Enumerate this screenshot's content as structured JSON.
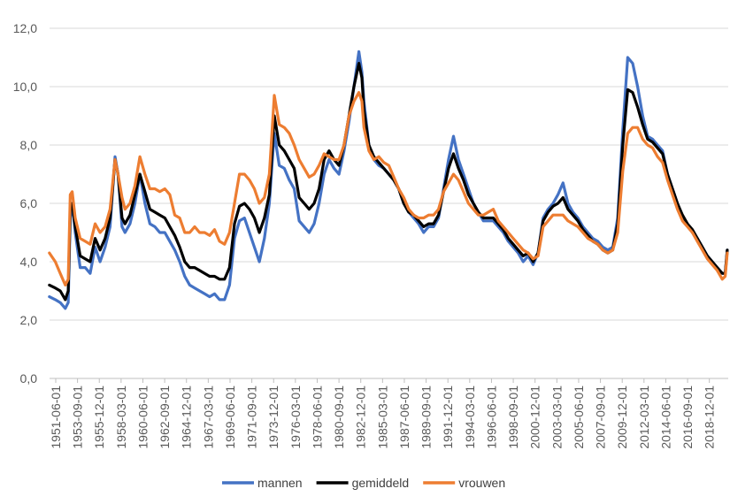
{
  "chart_data": {
    "type": "line",
    "title": "",
    "xlabel": "",
    "ylabel": "",
    "ylim": [
      0,
      12
    ],
    "yticks": [
      "0,0",
      "2,0",
      "4,0",
      "6,0",
      "8,0",
      "10,0",
      "12,0"
    ],
    "xlim": [
      1951.42,
      2019.6
    ],
    "xticks": [
      "1951-06-01",
      "1953-09-01",
      "1955-12-01",
      "1958-03-01",
      "1960-06-01",
      "1962-09-01",
      "1964-12-01",
      "1967-03-01",
      "1969-06-01",
      "1971-09-01",
      "1973-12-01",
      "1976-03-01",
      "1978-06-01",
      "1980-09-01",
      "1982-12-01",
      "1985-03-01",
      "1987-06-01",
      "1989-09-01",
      "1991-12-01",
      "1994-03-01",
      "1996-06-01",
      "1998-09-01",
      "2000-12-01",
      "2003-03-01",
      "2005-06-01",
      "2007-09-01",
      "2009-12-01",
      "2012-03-01",
      "2014-06-01",
      "2016-09-01",
      "2018-12-01"
    ],
    "grid": "horizontal",
    "legend_position": "bottom",
    "x": [
      1951.4,
      1952.0,
      1952.5,
      1953.0,
      1953.3,
      1953.5,
      1953.7,
      1954.0,
      1954.5,
      1955.0,
      1955.5,
      1956.0,
      1956.5,
      1957.0,
      1957.5,
      1958.0,
      1958.3,
      1958.7,
      1959.0,
      1959.5,
      1960.0,
      1960.5,
      1961.0,
      1961.5,
      1962.0,
      1962.5,
      1963.0,
      1963.5,
      1964.0,
      1964.5,
      1965.0,
      1965.5,
      1966.0,
      1966.5,
      1967.0,
      1967.5,
      1968.0,
      1968.5,
      1969.0,
      1969.5,
      1970.0,
      1970.5,
      1971.0,
      1971.5,
      1972.0,
      1972.5,
      1973.0,
      1973.5,
      1974.0,
      1974.5,
      1975.0,
      1975.5,
      1976.0,
      1976.5,
      1977.0,
      1977.5,
      1978.0,
      1978.5,
      1979.0,
      1979.5,
      1980.0,
      1980.5,
      1981.0,
      1981.5,
      1982.0,
      1982.5,
      1982.8,
      1983.0,
      1983.5,
      1984.0,
      1984.5,
      1985.0,
      1985.5,
      1986.0,
      1986.5,
      1987.0,
      1987.5,
      1988.0,
      1988.5,
      1989.0,
      1989.5,
      1990.0,
      1990.5,
      1991.0,
      1991.5,
      1992.0,
      1992.5,
      1993.0,
      1993.5,
      1994.0,
      1994.5,
      1995.0,
      1995.5,
      1996.0,
      1996.5,
      1997.0,
      1997.5,
      1998.0,
      1998.5,
      1999.0,
      1999.5,
      2000.0,
      2000.5,
      2001.0,
      2001.5,
      2002.0,
      2002.5,
      2003.0,
      2003.5,
      2004.0,
      2004.5,
      2005.0,
      2005.5,
      2006.0,
      2006.5,
      2007.0,
      2007.5,
      2008.0,
      2008.5,
      2009.0,
      2009.5,
      2010.0,
      2010.5,
      2011.0,
      2011.5,
      2012.0,
      2012.5,
      2013.0,
      2013.5,
      2014.0,
      2014.5,
      2015.0,
      2015.5,
      2016.0,
      2016.5,
      2017.0,
      2017.5,
      2018.0,
      2018.5,
      2019.0,
      2019.3,
      2019.5
    ],
    "series": [
      {
        "name": "mannen",
        "color": "#4472C4",
        "values": [
          2.8,
          2.7,
          2.6,
          2.4,
          2.6,
          5.5,
          6.0,
          5.0,
          3.8,
          3.8,
          3.6,
          4.5,
          4.0,
          4.5,
          5.2,
          7.6,
          7.0,
          5.2,
          5.0,
          5.3,
          6.0,
          7.0,
          6.0,
          5.3,
          5.2,
          5.0,
          5.0,
          4.7,
          4.4,
          4.0,
          3.5,
          3.2,
          3.1,
          3.0,
          2.9,
          2.8,
          2.9,
          2.7,
          2.7,
          3.2,
          4.8,
          5.4,
          5.5,
          5.0,
          4.5,
          4.0,
          4.8,
          6.0,
          8.4,
          7.3,
          7.2,
          6.8,
          6.5,
          5.4,
          5.2,
          5.0,
          5.3,
          6.0,
          7.0,
          7.5,
          7.2,
          7.0,
          7.8,
          8.8,
          10.0,
          11.2,
          10.5,
          9.5,
          8.0,
          7.5,
          7.3,
          7.2,
          7.0,
          6.8,
          6.5,
          6.0,
          5.7,
          5.5,
          5.3,
          5.0,
          5.2,
          5.2,
          5.5,
          6.5,
          7.5,
          8.3,
          7.5,
          7.0,
          6.5,
          6.0,
          5.7,
          5.4,
          5.4,
          5.4,
          5.2,
          5.0,
          4.7,
          4.5,
          4.3,
          4.0,
          4.2,
          3.9,
          4.3,
          5.5,
          5.8,
          6.0,
          6.3,
          6.7,
          6.0,
          5.7,
          5.5,
          5.2,
          5.0,
          4.8,
          4.7,
          4.5,
          4.4,
          4.5,
          5.5,
          8.5,
          11.0,
          10.8,
          10.0,
          9.0,
          8.3,
          8.2,
          8.0,
          7.8,
          7.0,
          6.5,
          6.0,
          5.5,
          5.3,
          5.0,
          4.8,
          4.5,
          4.2,
          4.0,
          3.8,
          3.6,
          3.6,
          4.4
        ]
      },
      {
        "name": "gemiddeld",
        "color": "#000000",
        "values": [
          3.2,
          3.1,
          3.0,
          2.7,
          3.0,
          5.8,
          6.0,
          5.2,
          4.2,
          4.1,
          4.0,
          4.8,
          4.4,
          4.8,
          5.5,
          7.5,
          7.0,
          5.5,
          5.3,
          5.6,
          6.3,
          7.0,
          6.4,
          5.8,
          5.7,
          5.6,
          5.5,
          5.2,
          4.9,
          4.5,
          4.0,
          3.8,
          3.8,
          3.7,
          3.6,
          3.5,
          3.5,
          3.4,
          3.4,
          3.8,
          5.3,
          5.9,
          6.0,
          5.8,
          5.5,
          5.0,
          5.5,
          6.3,
          9.0,
          8.0,
          7.8,
          7.5,
          7.2,
          6.2,
          6.0,
          5.8,
          6.0,
          6.5,
          7.5,
          7.8,
          7.5,
          7.3,
          8.0,
          9.0,
          10.0,
          10.8,
          10.3,
          9.2,
          8.0,
          7.6,
          7.4,
          7.2,
          7.0,
          6.8,
          6.5,
          6.0,
          5.7,
          5.6,
          5.4,
          5.2,
          5.3,
          5.3,
          5.6,
          6.4,
          7.2,
          7.7,
          7.2,
          6.8,
          6.3,
          6.0,
          5.7,
          5.5,
          5.5,
          5.5,
          5.3,
          5.1,
          4.8,
          4.6,
          4.4,
          4.2,
          4.3,
          4.0,
          4.3,
          5.4,
          5.7,
          5.9,
          6.0,
          6.2,
          5.8,
          5.6,
          5.4,
          5.1,
          4.9,
          4.7,
          4.6,
          4.4,
          4.3,
          4.4,
          5.3,
          8.0,
          9.9,
          9.8,
          9.3,
          8.7,
          8.2,
          8.1,
          7.9,
          7.7,
          7.0,
          6.5,
          6.0,
          5.6,
          5.3,
          5.1,
          4.8,
          4.5,
          4.2,
          4.0,
          3.8,
          3.6,
          3.6,
          4.4
        ]
      },
      {
        "name": "vrouwen",
        "color": "#ED7D31",
        "values": [
          4.3,
          4.0,
          3.6,
          3.2,
          3.4,
          6.3,
          6.4,
          5.5,
          4.8,
          4.7,
          4.6,
          5.3,
          5.0,
          5.2,
          5.8,
          7.5,
          7.0,
          6.2,
          5.8,
          6.0,
          6.6,
          7.6,
          7.0,
          6.5,
          6.5,
          6.4,
          6.5,
          6.3,
          5.6,
          5.5,
          5.0,
          5.0,
          5.2,
          5.0,
          5.0,
          4.9,
          5.1,
          4.7,
          4.6,
          5.0,
          6.0,
          7.0,
          7.0,
          6.8,
          6.5,
          6.0,
          6.2,
          7.0,
          9.7,
          8.7,
          8.6,
          8.4,
          8.0,
          7.5,
          7.2,
          6.9,
          7.0,
          7.3,
          7.7,
          7.6,
          7.5,
          7.5,
          8.0,
          9.0,
          9.5,
          9.8,
          9.5,
          8.6,
          7.8,
          7.5,
          7.6,
          7.4,
          7.3,
          6.9,
          6.5,
          6.2,
          5.8,
          5.6,
          5.5,
          5.5,
          5.6,
          5.6,
          5.8,
          6.4,
          6.7,
          7.0,
          6.8,
          6.4,
          6.0,
          5.8,
          5.6,
          5.6,
          5.7,
          5.8,
          5.4,
          5.2,
          5.0,
          4.8,
          4.6,
          4.4,
          4.3,
          4.1,
          4.2,
          5.2,
          5.4,
          5.6,
          5.6,
          5.6,
          5.4,
          5.3,
          5.2,
          5.0,
          4.8,
          4.7,
          4.6,
          4.4,
          4.3,
          4.4,
          5.0,
          7.1,
          8.4,
          8.6,
          8.6,
          8.2,
          8.0,
          7.9,
          7.6,
          7.4,
          6.8,
          6.3,
          5.8,
          5.4,
          5.2,
          5.0,
          4.7,
          4.4,
          4.1,
          3.9,
          3.7,
          3.4,
          3.5,
          4.3
        ]
      }
    ]
  }
}
